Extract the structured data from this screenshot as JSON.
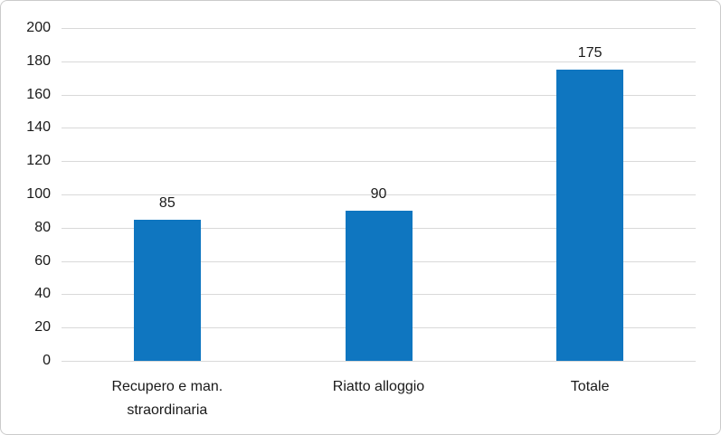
{
  "chart_data": {
    "type": "bar",
    "title": "",
    "xlabel": "",
    "ylabel": "",
    "categories": [
      "Recupero e man. straordinaria",
      "Riatto alloggio",
      "Totale"
    ],
    "values": [
      85,
      90,
      175
    ],
    "value_labels": [
      "85",
      "90",
      "175"
    ],
    "ylim": [
      0,
      200
    ],
    "ytick_step": 20,
    "ytick_labels": [
      "0",
      "20",
      "40",
      "60",
      "80",
      "100",
      "120",
      "140",
      "160",
      "180",
      "200"
    ],
    "grid": true,
    "legend": false,
    "colors": {
      "bar": "#0F76C0",
      "gridline": "#D9D9D9",
      "axis_line": "#D9D9D9",
      "text": "#1A1A1A",
      "background": "#FFFFFF",
      "frame_border": "#CBCBCB"
    }
  }
}
